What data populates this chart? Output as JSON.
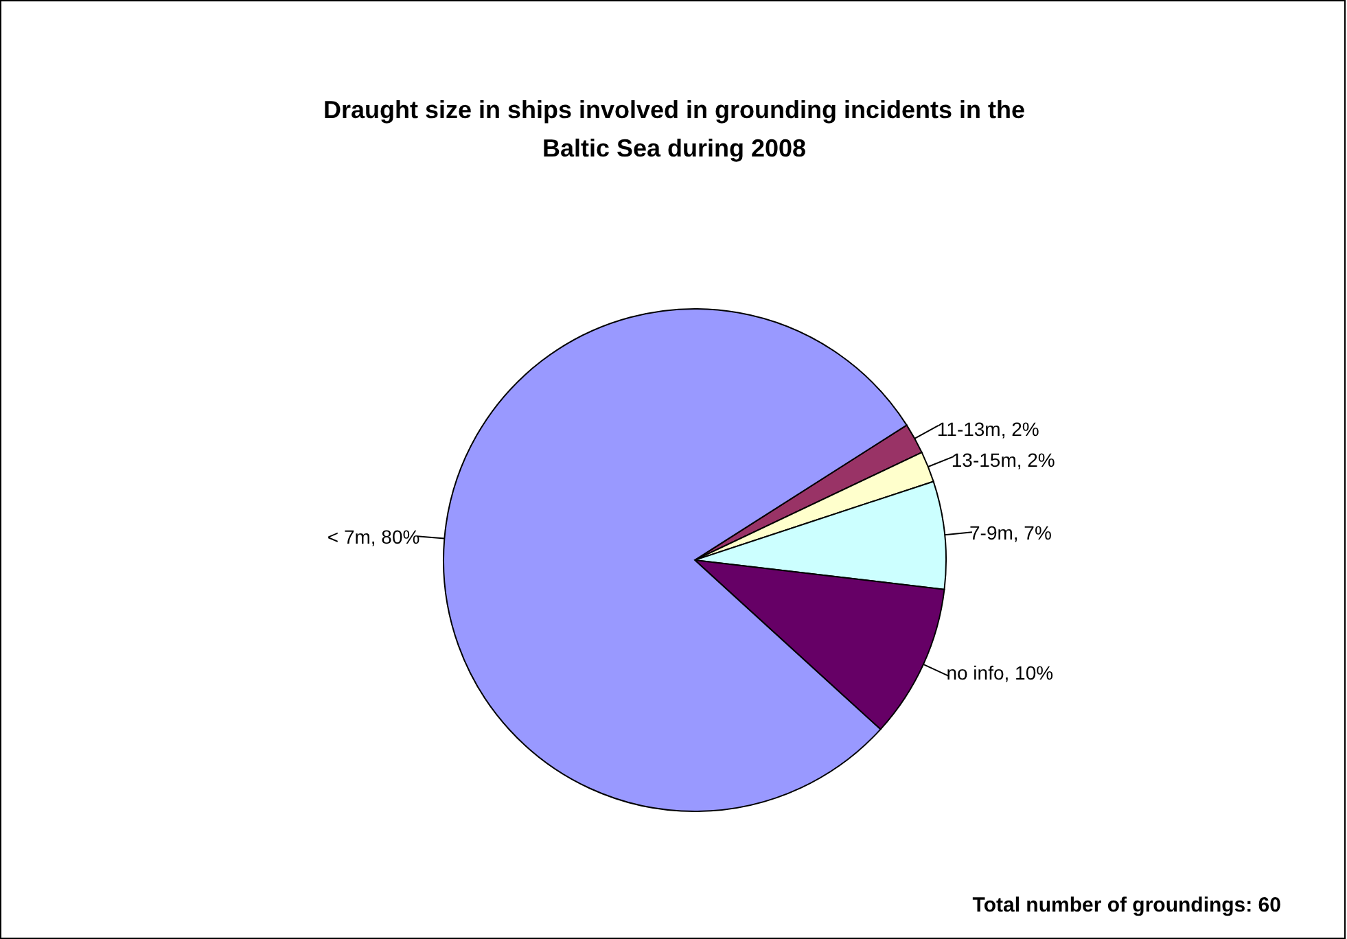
{
  "chart_data": {
    "type": "pie",
    "title": "Draught size in ships involved in grounding incidents in the Baltic Sea during 2008",
    "categories": [
      "11-13m",
      "13-15m",
      "7-9m",
      "no info",
      "< 7m"
    ],
    "values": [
      2,
      2,
      7,
      10,
      80
    ],
    "value_labels": [
      "2%",
      "2%",
      "7%",
      "10%",
      "80%"
    ],
    "colors": [
      "#993366",
      "#ffffcc",
      "#ccffff",
      "#660066",
      "#9999ff"
    ],
    "annotations": [
      "Total number of groundings: 60"
    ]
  }
}
